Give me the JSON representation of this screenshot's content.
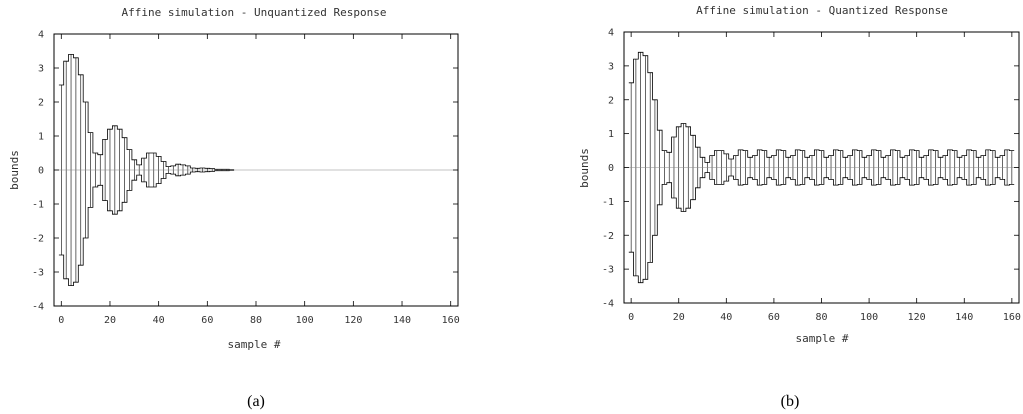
{
  "chart_data": [
    {
      "type": "area",
      "title": "Affine simulation - Unquantized Response",
      "xlabel": "sample #",
      "ylabel": "bounds",
      "xlim": [
        -3,
        163
      ],
      "ylim": [
        -4,
        4
      ],
      "xticks": [
        "0",
        "20",
        "40",
        "60",
        "80",
        "100",
        "120",
        "140",
        "160"
      ],
      "yticks": [
        "4",
        "3",
        "2",
        "1",
        "0",
        "-1",
        "-2",
        "-3",
        "-4"
      ],
      "caption": "(a)",
      "series": [
        {
          "x": [
            0,
            2,
            4,
            6,
            8,
            10,
            12,
            14,
            16,
            18,
            20,
            22,
            24,
            26,
            28,
            30,
            32,
            34,
            36,
            38,
            40,
            42,
            44,
            46,
            48,
            50,
            52,
            54,
            56,
            58,
            60,
            62,
            64,
            66,
            68,
            70
          ],
          "upper": [
            2.5,
            3.2,
            3.4,
            3.3,
            2.8,
            2.0,
            1.1,
            0.5,
            0.45,
            0.9,
            1.2,
            1.3,
            1.2,
            0.95,
            0.6,
            0.3,
            0.15,
            0.35,
            0.5,
            0.5,
            0.4,
            0.25,
            0.1,
            0.12,
            0.17,
            0.15,
            0.12,
            0.06,
            0.05,
            0.06,
            0.05,
            0.04,
            0.02,
            0.02,
            0.02,
            0.01
          ],
          "lower": [
            -2.5,
            -3.2,
            -3.4,
            -3.3,
            -2.8,
            -2.0,
            -1.1,
            -0.5,
            -0.45,
            -0.9,
            -1.2,
            -1.3,
            -1.2,
            -0.95,
            -0.6,
            -0.3,
            -0.15,
            -0.35,
            -0.5,
            -0.5,
            -0.4,
            -0.25,
            -0.1,
            -0.12,
            -0.17,
            -0.15,
            -0.12,
            -0.06,
            -0.05,
            -0.06,
            -0.05,
            -0.04,
            -0.02,
            -0.02,
            -0.02,
            -0.01
          ]
        }
      ],
      "grid": false
    },
    {
      "type": "area",
      "title": "Affine simulation - Quantized Response",
      "xlabel": "sample #",
      "ylabel": "bounds",
      "xlim": [
        -3,
        163
      ],
      "ylim": [
        -4,
        4
      ],
      "xticks": [
        "0",
        "20",
        "40",
        "60",
        "80",
        "100",
        "120",
        "140",
        "160"
      ],
      "yticks": [
        "4",
        "3",
        "2",
        "1",
        "0",
        "-1",
        "-2",
        "-3",
        "-4"
      ],
      "caption": "(b)",
      "series": [
        {
          "x": [
            0,
            2,
            4,
            6,
            8,
            10,
            12,
            14,
            16,
            18,
            20,
            22,
            24,
            26,
            28,
            30,
            32,
            34,
            36,
            38,
            40,
            42,
            44,
            46,
            48,
            50,
            52,
            54,
            56,
            58,
            60,
            62,
            64,
            66,
            68,
            70,
            72,
            74,
            76,
            78,
            80,
            82,
            84,
            86,
            88,
            90,
            92,
            94,
            96,
            98,
            100,
            102,
            104,
            106,
            108,
            110,
            112,
            114,
            116,
            118,
            120,
            122,
            124,
            126,
            128,
            130,
            132,
            134,
            136,
            138,
            140,
            142,
            144,
            146,
            148,
            150,
            152,
            154,
            156,
            158,
            160
          ],
          "upper": [
            2.5,
            3.2,
            3.4,
            3.3,
            2.8,
            2.0,
            1.1,
            0.5,
            0.45,
            0.9,
            1.2,
            1.3,
            1.2,
            0.95,
            0.6,
            0.3,
            0.15,
            0.35,
            0.5,
            0.5,
            0.4,
            0.25,
            0.35,
            0.52,
            0.5,
            0.3,
            0.35,
            0.52,
            0.5,
            0.3,
            0.35,
            0.52,
            0.5,
            0.3,
            0.35,
            0.52,
            0.5,
            0.3,
            0.35,
            0.52,
            0.5,
            0.3,
            0.35,
            0.52,
            0.5,
            0.3,
            0.35,
            0.52,
            0.5,
            0.3,
            0.35,
            0.52,
            0.5,
            0.3,
            0.35,
            0.52,
            0.5,
            0.3,
            0.35,
            0.52,
            0.5,
            0.3,
            0.35,
            0.52,
            0.5,
            0.3,
            0.35,
            0.52,
            0.5,
            0.3,
            0.35,
            0.52,
            0.5,
            0.3,
            0.35,
            0.52,
            0.5,
            0.3,
            0.35,
            0.52,
            0.5
          ],
          "lower": [
            -2.5,
            -3.2,
            -3.4,
            -3.3,
            -2.8,
            -2.0,
            -1.1,
            -0.5,
            -0.45,
            -0.9,
            -1.2,
            -1.3,
            -1.2,
            -0.95,
            -0.6,
            -0.3,
            -0.15,
            -0.35,
            -0.5,
            -0.5,
            -0.4,
            -0.25,
            -0.35,
            -0.52,
            -0.5,
            -0.3,
            -0.35,
            -0.52,
            -0.5,
            -0.3,
            -0.35,
            -0.52,
            -0.5,
            -0.3,
            -0.35,
            -0.52,
            -0.5,
            -0.3,
            -0.35,
            -0.52,
            -0.5,
            -0.3,
            -0.35,
            -0.52,
            -0.5,
            -0.3,
            -0.35,
            -0.52,
            -0.5,
            -0.3,
            -0.35,
            -0.52,
            -0.5,
            -0.3,
            -0.35,
            -0.52,
            -0.5,
            -0.3,
            -0.35,
            -0.52,
            -0.5,
            -0.3,
            -0.35,
            -0.52,
            -0.5,
            -0.3,
            -0.35,
            -0.52,
            -0.5,
            -0.3,
            -0.35,
            -0.52,
            -0.5,
            -0.3,
            -0.35,
            -0.52,
            -0.5,
            -0.3,
            -0.35,
            -0.52,
            -0.5
          ]
        }
      ],
      "grid": false
    }
  ]
}
